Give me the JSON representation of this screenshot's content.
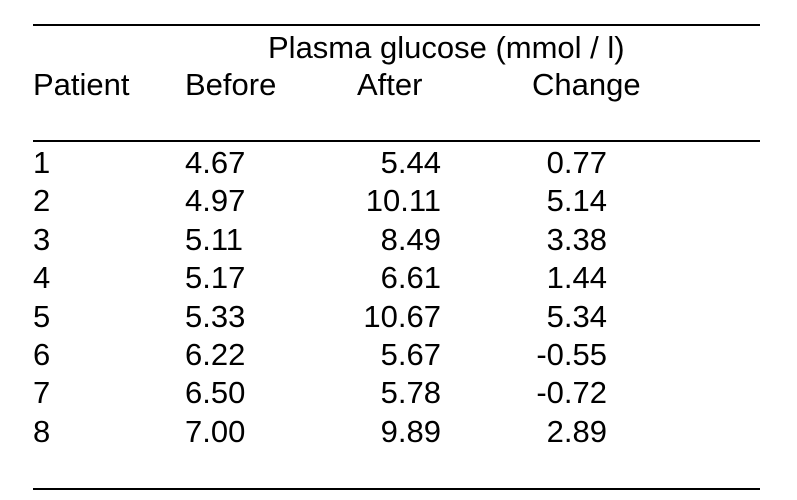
{
  "table": {
    "super_header": "Plasma glucose (mmol / l)",
    "columns": [
      "Patient",
      "Before",
      "After",
      "Change"
    ],
    "rows": [
      {
        "patient": "1",
        "before": "4.67",
        "after": "5.44",
        "change": "0.77"
      },
      {
        "patient": "2",
        "before": "4.97",
        "after": "10.11",
        "change": "5.14"
      },
      {
        "patient": "3",
        "before": "5.11",
        "after": "8.49",
        "change": "3.38"
      },
      {
        "patient": "4",
        "before": "5.17",
        "after": "6.61",
        "change": "1.44"
      },
      {
        "patient": "5",
        "before": "5.33",
        "after": "10.67",
        "change": "5.34"
      },
      {
        "patient": "6",
        "before": "6.22",
        "after": "5.67",
        "change": "-0.55"
      },
      {
        "patient": "7",
        "before": "6.50",
        "after": "5.78",
        "change": "-0.72"
      },
      {
        "patient": "8",
        "before": "7.00",
        "after": "9.89",
        "change": "2.89"
      }
    ]
  }
}
